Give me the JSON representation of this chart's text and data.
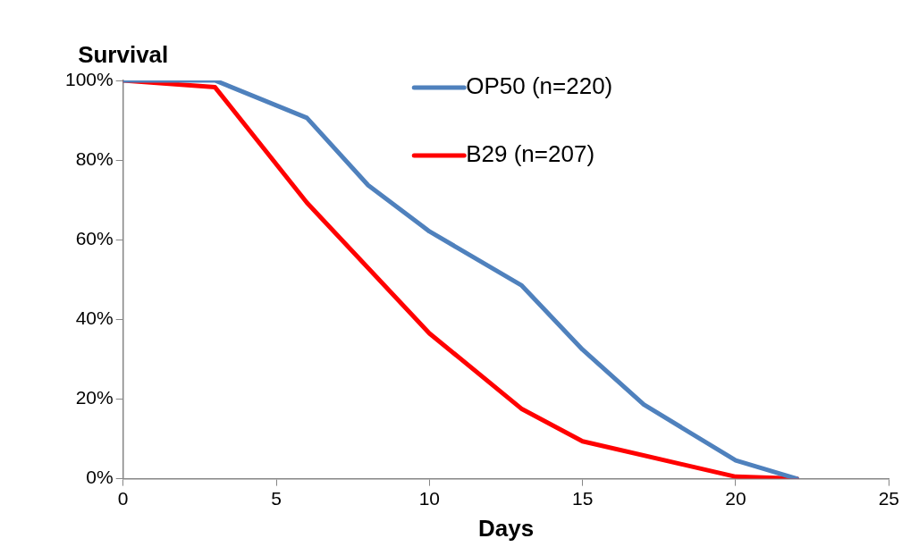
{
  "chart_data": {
    "type": "line",
    "ylabel": "Survival",
    "xlabel": "Days",
    "legend": "top",
    "grid": false,
    "marker": "none",
    "line_style": "solid",
    "xlim": [
      0,
      25
    ],
    "xticks": [
      0,
      5,
      10,
      15,
      20,
      25
    ],
    "ylim": [
      0,
      100
    ],
    "yticks": [
      {
        "value": 0,
        "label": "0%"
      },
      {
        "value": 20,
        "label": "20%"
      },
      {
        "value": 40,
        "label": "40%"
      },
      {
        "value": 60,
        "label": "60%"
      },
      {
        "value": 80,
        "label": "80%"
      },
      {
        "value": 100,
        "label": "100%"
      }
    ],
    "series": [
      {
        "name": "OP50 (n=220)",
        "color": "#4f81bd",
        "x": [
          0,
          3,
          6,
          8,
          10,
          13,
          15,
          17,
          20,
          22
        ],
        "values": [
          100,
          100,
          90.6,
          73.7,
          62.1,
          48.6,
          32.4,
          18.6,
          4.6,
          0
        ]
      },
      {
        "name": "B29 (n=207)",
        "color": "#ff0000",
        "x": [
          0,
          3,
          6,
          10,
          13,
          15,
          20,
          22
        ],
        "values": [
          100,
          98.3,
          69.3,
          36.5,
          17.6,
          9.4,
          0.5,
          0
        ]
      }
    ]
  }
}
